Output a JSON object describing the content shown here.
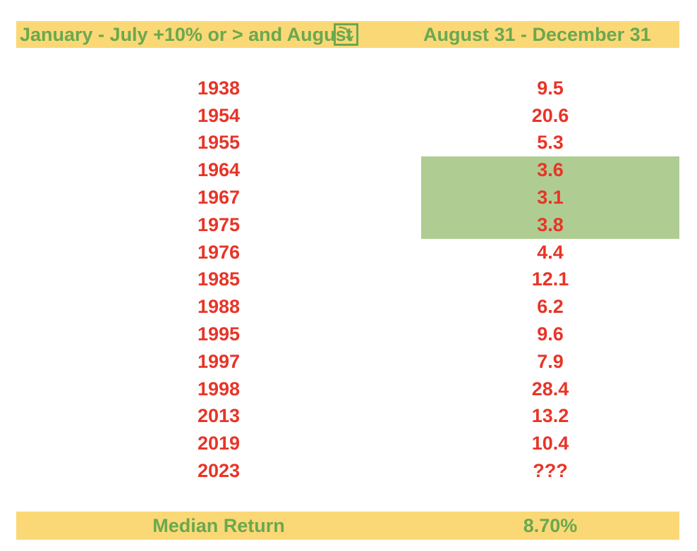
{
  "header": {
    "left_label": "January - July +10% or > and August",
    "icon_glyph": "⤵",
    "right_label": "August 31 - December 31"
  },
  "table": {
    "rows": [
      {
        "year": "1938",
        "value": "9.5",
        "highlighted": false
      },
      {
        "year": "1954",
        "value": "20.6",
        "highlighted": false
      },
      {
        "year": "1955",
        "value": "5.3",
        "highlighted": false
      },
      {
        "year": "1964",
        "value": "3.6",
        "highlighted": true
      },
      {
        "year": "1967",
        "value": "3.1",
        "highlighted": true
      },
      {
        "year": "1975",
        "value": "3.8",
        "highlighted": true
      },
      {
        "year": "1976",
        "value": "4.4",
        "highlighted": false
      },
      {
        "year": "1985",
        "value": "12.1",
        "highlighted": false
      },
      {
        "year": "1988",
        "value": "6.2",
        "highlighted": false
      },
      {
        "year": "1995",
        "value": "9.6",
        "highlighted": false
      },
      {
        "year": "1997",
        "value": "7.9",
        "highlighted": false
      },
      {
        "year": "1998",
        "value": "28.4",
        "highlighted": false
      },
      {
        "year": "2013",
        "value": "13.2",
        "highlighted": false
      },
      {
        "year": "2019",
        "value": "10.4",
        "highlighted": false
      },
      {
        "year": "2023",
        "value": "???",
        "highlighted": false
      }
    ]
  },
  "footer": {
    "label": "Median Return",
    "value": "8.70%"
  },
  "colors": {
    "bar_background": "#FBD876",
    "green_text": "#6AA84F",
    "red_text": "#E83428",
    "highlight_background": "#AFCC92"
  },
  "chart_data": {
    "type": "table",
    "columns": [
      "January - July +10% or > and August",
      "August 31 - December 31"
    ],
    "rows": [
      [
        1938,
        9.5
      ],
      [
        1954,
        20.6
      ],
      [
        1955,
        5.3
      ],
      [
        1964,
        3.6
      ],
      [
        1967,
        3.1
      ],
      [
        1975,
        3.8
      ],
      [
        1976,
        4.4
      ],
      [
        1985,
        12.1
      ],
      [
        1988,
        6.2
      ],
      [
        1995,
        9.6
      ],
      [
        1997,
        7.9
      ],
      [
        1998,
        28.4
      ],
      [
        2013,
        13.2
      ],
      [
        2019,
        10.4
      ],
      [
        2023,
        "???"
      ]
    ],
    "highlighted_rows": [
      1964,
      1967,
      1975
    ],
    "summary": {
      "label": "Median Return",
      "value": "8.70%"
    }
  }
}
